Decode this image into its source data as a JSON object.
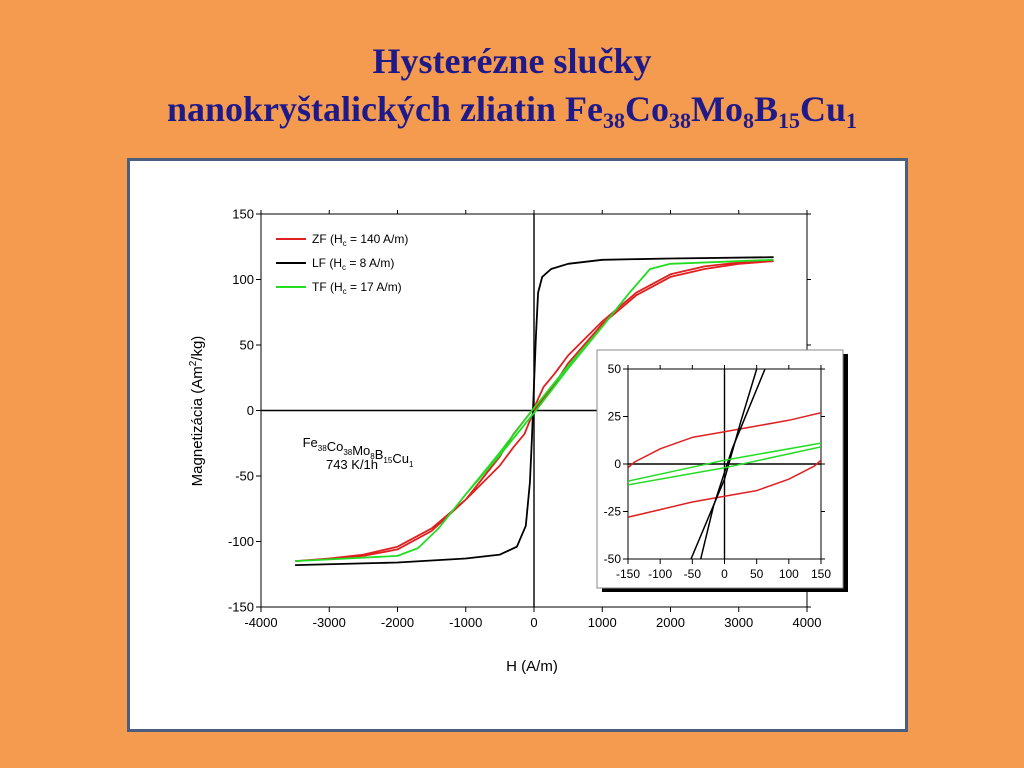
{
  "slide": {
    "title_line1": "Hysterézne slučky",
    "title_line2_main": "nanokryštalických zliatin ",
    "formula": [
      {
        "el": "Fe",
        "sub": "38"
      },
      {
        "el": "Co",
        "sub": "38"
      },
      {
        "el": "Mo",
        "sub": "8"
      },
      {
        "el": "B",
        "sub": "15"
      },
      {
        "el": "Cu",
        "sub": "1"
      }
    ],
    "annotation_line2": "743 K/1h"
  },
  "chart_data": [
    {
      "type": "line",
      "xlabel": "H (A/m)",
      "ylabel_prefix": "Magnetizácia (Am",
      "ylabel_sup": "2",
      "ylabel_suffix": "/kg)",
      "xlim": [
        -4000,
        4000
      ],
      "ylim": [
        -150,
        150
      ],
      "xticks": [
        -4000,
        -3000,
        -2000,
        -1000,
        0,
        1000,
        2000,
        3000,
        4000
      ],
      "yticks": [
        -150,
        -100,
        -50,
        0,
        50,
        100,
        150
      ],
      "legend_position": "top-left",
      "series": [
        {
          "name_pre": "ZF (H",
          "name_sub": "c",
          "name_post": " = 140 A/m)",
          "color": "#e02020",
          "x": [
            -3500,
            -2500,
            -2000,
            -1500,
            -1000,
            -500,
            -300,
            -150,
            0,
            140,
            300,
            500,
            1000,
            1500,
            2000,
            2500,
            3000,
            3500,
            3500,
            3000,
            2500,
            2000,
            1500,
            1000,
            500,
            300,
            150,
            0,
            -140,
            -300,
            -500,
            -1000,
            -1500,
            -2000,
            -2500,
            -3000,
            -3500
          ],
          "y": [
            -115,
            -111,
            -106,
            -92,
            -68,
            -35,
            -18,
            -8,
            2,
            18,
            28,
            42,
            68,
            90,
            104,
            110,
            113,
            114,
            114,
            112,
            108,
            102,
            88,
            66,
            36,
            20,
            10,
            0,
            -18,
            -28,
            -42,
            -68,
            -90,
            -104,
            -110,
            -113,
            -115
          ]
        },
        {
          "name_pre": "LF (H",
          "name_sub": "c",
          "name_post": " = 8 A/m)",
          "color": "#000000",
          "x": [
            -3500,
            -2000,
            -1000,
            -500,
            -250,
            -120,
            -60,
            -30,
            0,
            30,
            60,
            120,
            250,
            500,
            1000,
            2000,
            3500,
            3500,
            2000,
            1000,
            500,
            250,
            120,
            60,
            30,
            0,
            -30,
            -60,
            -120,
            -250,
            -500,
            -1000,
            -2000,
            -3500
          ],
          "y": [
            -118,
            -116,
            -113,
            -110,
            -104,
            -88,
            -55,
            -20,
            20,
            58,
            90,
            102,
            108,
            112,
            115,
            116,
            117,
            117,
            116,
            115,
            112,
            108,
            102,
            90,
            58,
            20,
            -20,
            -55,
            -88,
            -104,
            -110,
            -113,
            -116,
            -118
          ]
        },
        {
          "name_pre": "TF (H",
          "name_sub": "c",
          "name_post": " = 17 A/m)",
          "color": "#22dd22",
          "x": [
            -3500,
            -2000,
            -1700,
            -1400,
            -1000,
            -500,
            0,
            500,
            1000,
            1400,
            1700,
            2000,
            3500,
            3500,
            2000,
            1700,
            1400,
            1000,
            500,
            0,
            -500,
            -1000,
            -1400,
            -1700,
            -2000,
            -3500
          ],
          "y": [
            -115,
            -111,
            -105,
            -90,
            -64,
            -32,
            2,
            34,
            64,
            90,
            108,
            112,
            115,
            115,
            112,
            108,
            90,
            64,
            32,
            -2,
            -34,
            -64,
            -90,
            -105,
            -111,
            -115
          ]
        }
      ]
    },
    {
      "type": "line",
      "inset": true,
      "xlim": [
        -150,
        150
      ],
      "ylim": [
        -50,
        50
      ],
      "xticks": [
        -150,
        -100,
        -50,
        0,
        50,
        100,
        150
      ],
      "yticks": [
        -50,
        -25,
        0,
        25,
        50
      ],
      "series": [
        {
          "color": "#e02020",
          "x": [
            -150,
            -140,
            -100,
            -50,
            0,
            50,
            100,
            150
          ],
          "y": [
            -2,
            1,
            8,
            14,
            17,
            20,
            23,
            27
          ]
        },
        {
          "color": "#e02020",
          "x": [
            -150,
            -100,
            -50,
            0,
            50,
            100,
            140,
            150
          ],
          "y": [
            -28,
            -24,
            -20,
            -17,
            -14,
            -8,
            -1,
            2
          ]
        },
        {
          "color": "#000000",
          "x": [
            -52,
            0,
            25,
            50
          ],
          "y": [
            -50,
            -8,
            22,
            50
          ]
        },
        {
          "color": "#000000",
          "x": [
            -37,
            -17,
            12,
            63
          ],
          "y": [
            -50,
            -22,
            8,
            50
          ]
        },
        {
          "color": "#22dd22",
          "x": [
            -150,
            0,
            150
          ],
          "y": [
            -9,
            2,
            11
          ]
        },
        {
          "color": "#22dd22",
          "x": [
            -150,
            0,
            150
          ],
          "y": [
            -11,
            -2,
            9
          ]
        }
      ]
    }
  ]
}
